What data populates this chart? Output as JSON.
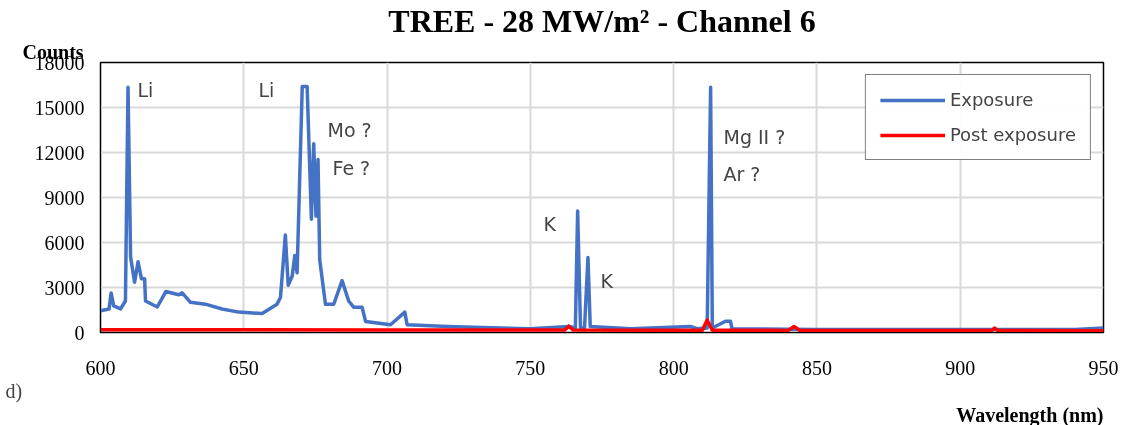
{
  "chart_data": {
    "type": "line",
    "title": "TREE - 28 MW/m² - Channel 6",
    "xlabel": "Wavelength (nm)",
    "ylabel": "Counts",
    "xlim": [
      600,
      950
    ],
    "ylim": [
      0,
      18000
    ],
    "xticks": [
      600,
      650,
      700,
      750,
      800,
      850,
      900,
      950
    ],
    "yticks": [
      0,
      3000,
      6000,
      9000,
      12000,
      15000,
      18000
    ],
    "grid": true,
    "legend": "top right",
    "line_style": "solid",
    "marker": "none",
    "series": [
      {
        "name": "Exposure",
        "color": "#4472c4",
        "x": [
          600,
          603,
          603.7,
          604.6,
          607,
          608.7,
          609.6,
          610.5,
          611.9,
          613.1,
          614.3,
          615.4,
          615.7,
          619.8,
          622.8,
          627.3,
          628.5,
          631.4,
          636.6,
          642.4,
          648.2,
          656.4,
          661.6,
          662.8,
          664.5,
          665.5,
          666.9,
          667.8,
          668.6,
          670.4,
          672.1,
          673.6,
          674.4,
          675.2,
          675.9,
          676.5,
          678.5,
          681.4,
          684.3,
          686.6,
          688.4,
          691.3,
          692.5,
          701.2,
          706.2,
          707,
          721,
          750,
          763.4,
          765.7,
          766.5,
          767.5,
          768.9,
          770.1,
          770.9,
          785,
          805.9,
          808.2,
          811.7,
          812.9,
          813.5,
          818.1,
          819.8,
          820.4,
          850,
          900,
          940,
          950
        ],
        "values": [
          1450,
          1570,
          2640,
          1780,
          1570,
          2100,
          16350,
          5030,
          3350,
          4720,
          3580,
          3580,
          2100,
          1700,
          2730,
          2520,
          2640,
          2010,
          1890,
          1570,
          1360,
          1260,
          1890,
          2330,
          6500,
          3150,
          3770,
          5140,
          3990,
          16400,
          16400,
          7550,
          12580,
          7760,
          11530,
          4830,
          1890,
          1890,
          3460,
          2100,
          1680,
          1680,
          740,
          520,
          1360,
          520,
          400,
          250,
          400,
          300,
          8100,
          300,
          300,
          5000,
          400,
          250,
          400,
          250,
          300,
          16350,
          300,
          750,
          750,
          250,
          200,
          200,
          200,
          300
        ]
      },
      {
        "name": "Post exposure",
        "color": "#ff0000",
        "x": [
          600,
          650,
          700,
          750,
          762,
          763.4,
          765,
          800,
          810,
          811.7,
          813.5,
          840,
          842,
          844,
          900,
          911,
          912,
          913,
          950
        ],
        "values": [
          190,
          180,
          170,
          160,
          160,
          420,
          160,
          150,
          150,
          830,
          150,
          140,
          400,
          140,
          130,
          130,
          300,
          130,
          120
        ]
      }
    ],
    "annotations": [
      "Li",
      "Li",
      "Mo ?",
      "Fe ?",
      "K",
      "K",
      "Mg II ?",
      "Ar ?",
      "d)"
    ]
  }
}
